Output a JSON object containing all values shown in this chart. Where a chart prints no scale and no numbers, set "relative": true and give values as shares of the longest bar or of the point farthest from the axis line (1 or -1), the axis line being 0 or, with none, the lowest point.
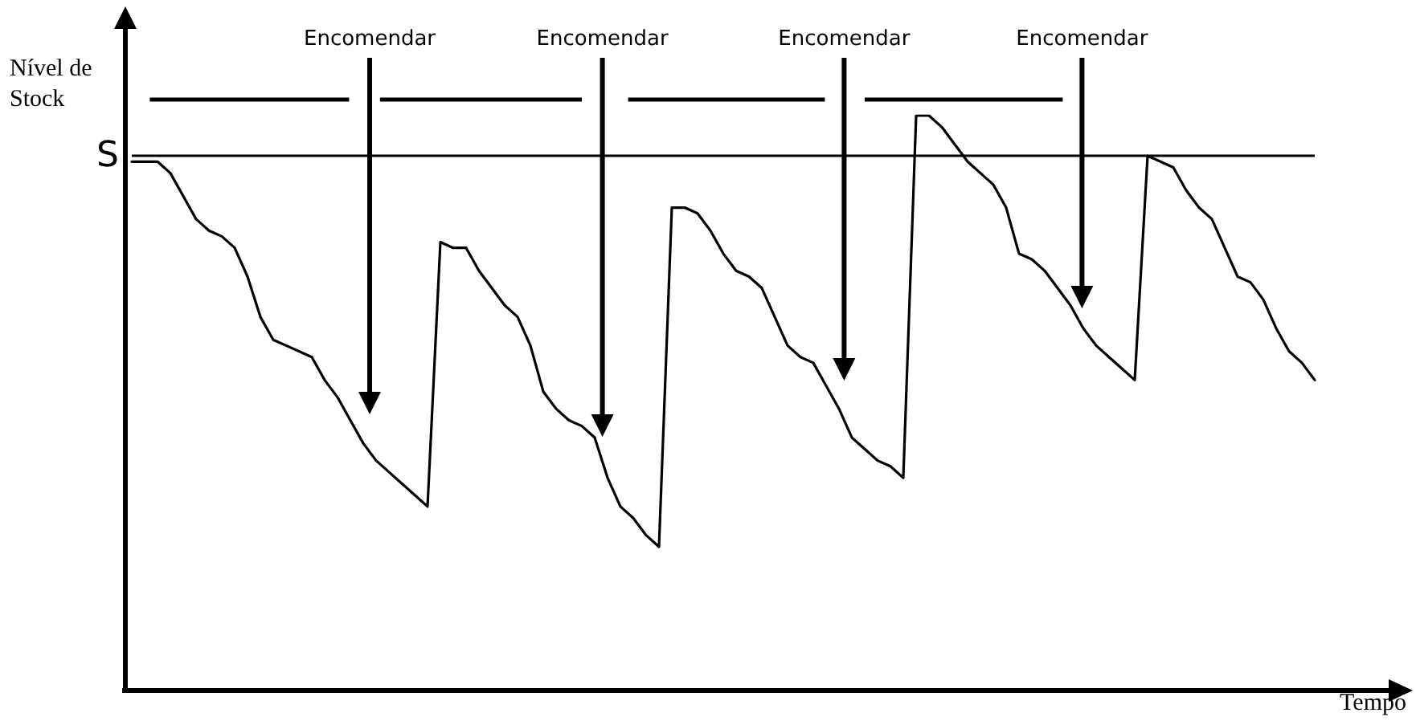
{
  "chart_data": {
    "type": "line",
    "relative": true,
    "xlabel": "Tempo",
    "ylabel": "Nível de Stock",
    "categories": [
      null,
      null,
      null,
      null,
      null,
      null,
      null,
      null,
      null,
      null,
      null,
      null,
      null,
      null,
      null,
      null,
      null,
      null,
      null,
      null,
      null,
      null,
      null,
      null,
      null,
      null,
      null,
      null,
      null,
      null,
      null,
      null,
      null,
      null,
      null,
      null,
      null,
      null,
      null,
      null,
      null,
      null,
      null,
      null,
      null,
      null,
      null,
      null,
      null,
      null,
      null,
      null,
      null,
      null,
      null,
      null,
      null,
      null,
      null,
      null,
      null,
      null,
      null,
      null,
      null,
      null,
      null,
      null,
      null,
      null,
      null,
      null,
      null,
      null,
      null,
      null,
      null,
      null,
      null,
      null,
      null,
      null,
      null,
      null,
      null,
      null,
      null,
      null,
      null,
      null,
      null,
      null,
      null
    ],
    "series": [
      {
        "color": "#000000",
        "values": [
          0.92,
          0.92,
          0.92,
          0.9,
          0.86,
          0.82,
          0.8,
          0.79,
          0.77,
          0.72,
          0.65,
          0.61,
          0.6,
          0.59,
          0.58,
          0.54,
          0.51,
          0.47,
          0.43,
          0.4,
          0.38,
          0.36,
          0.34,
          0.32,
          0.78,
          0.77,
          0.77,
          0.73,
          0.7,
          0.67,
          0.65,
          0.6,
          0.52,
          0.49,
          0.47,
          0.46,
          0.44,
          0.37,
          0.32,
          0.3,
          0.27,
          0.25,
          0.84,
          0.84,
          0.83,
          0.8,
          0.76,
          0.73,
          0.72,
          0.7,
          0.65,
          0.6,
          0.58,
          0.57,
          0.53,
          0.49,
          0.44,
          0.42,
          0.4,
          0.39,
          0.37,
          1,
          1.0,
          0.98,
          0.95,
          0.92,
          0.9,
          0.88,
          0.84,
          0.76,
          0.75,
          0.73,
          0.7,
          0.67,
          0.63,
          0.6,
          0.58,
          0.56,
          0.54,
          0.93,
          0.92,
          0.91,
          0.87,
          0.84,
          0.82,
          0.77,
          0.72,
          0.71,
          0.68,
          0.63,
          0.59,
          0.57,
          0.54
        ]
      }
    ],
    "ref_lines": [
      {
        "axis": "y",
        "value": 0.93,
        "label": "S",
        "color": "#000000"
      }
    ],
    "annotations": [
      "Encomendar",
      "Encomendar",
      "Encomendar",
      "Encomendar"
    ],
    "grid": false,
    "marker": "none",
    "line_style": "solid"
  }
}
